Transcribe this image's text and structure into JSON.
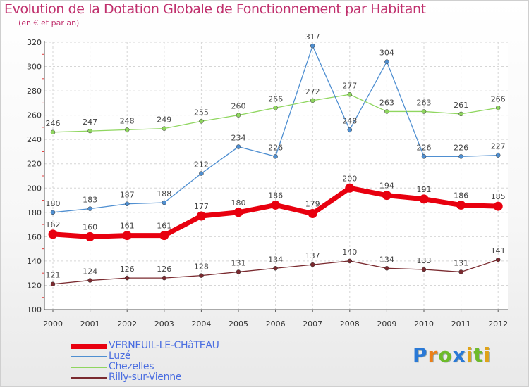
{
  "title": "Evolution de la Dotation Globale de Fonctionnement par Habitant",
  "subtitle": "(en € et par an)",
  "logo": {
    "letters": [
      "P",
      "r",
      "o",
      "x",
      "i",
      "t",
      "i"
    ],
    "text": "Proxiti"
  },
  "chart_data": {
    "type": "line",
    "title": "Evolution de la Dotation Globale de Fonctionnement par Habitant",
    "subtitle": "(en € et par an)",
    "xlabel": "",
    "ylabel": "",
    "categories": [
      "2000",
      "2001",
      "2002",
      "2003",
      "2004",
      "2005",
      "2006",
      "2007",
      "2008",
      "2009",
      "2010",
      "2011",
      "2012"
    ],
    "ylim": [
      100,
      320
    ],
    "yticks": [
      100,
      120,
      140,
      160,
      180,
      200,
      220,
      240,
      260,
      280,
      300,
      320
    ],
    "grid": true,
    "legend_position": "bottom-left",
    "series": [
      {
        "name": "VERNEUIL-LE-CHâTEAU",
        "color": "#e8000f",
        "values": [
          162,
          160,
          161,
          161,
          177,
          180,
          186,
          179,
          200,
          194,
          191,
          186,
          185
        ]
      },
      {
        "name": "Luzé",
        "color": "#4f8fd1",
        "values": [
          180,
          183,
          187,
          188,
          212,
          234,
          226,
          317,
          248,
          304,
          226,
          226,
          227
        ]
      },
      {
        "name": "Chezelles",
        "color": "#8fd65f",
        "values": [
          246,
          247,
          248,
          249,
          255,
          260,
          266,
          272,
          277,
          263,
          263,
          261,
          266
        ]
      },
      {
        "name": "Rilly-sur-Vienne",
        "color": "#7a2a2f",
        "values": [
          121,
          124,
          126,
          126,
          128,
          131,
          134,
          137,
          140,
          134,
          133,
          131,
          141
        ]
      }
    ]
  }
}
